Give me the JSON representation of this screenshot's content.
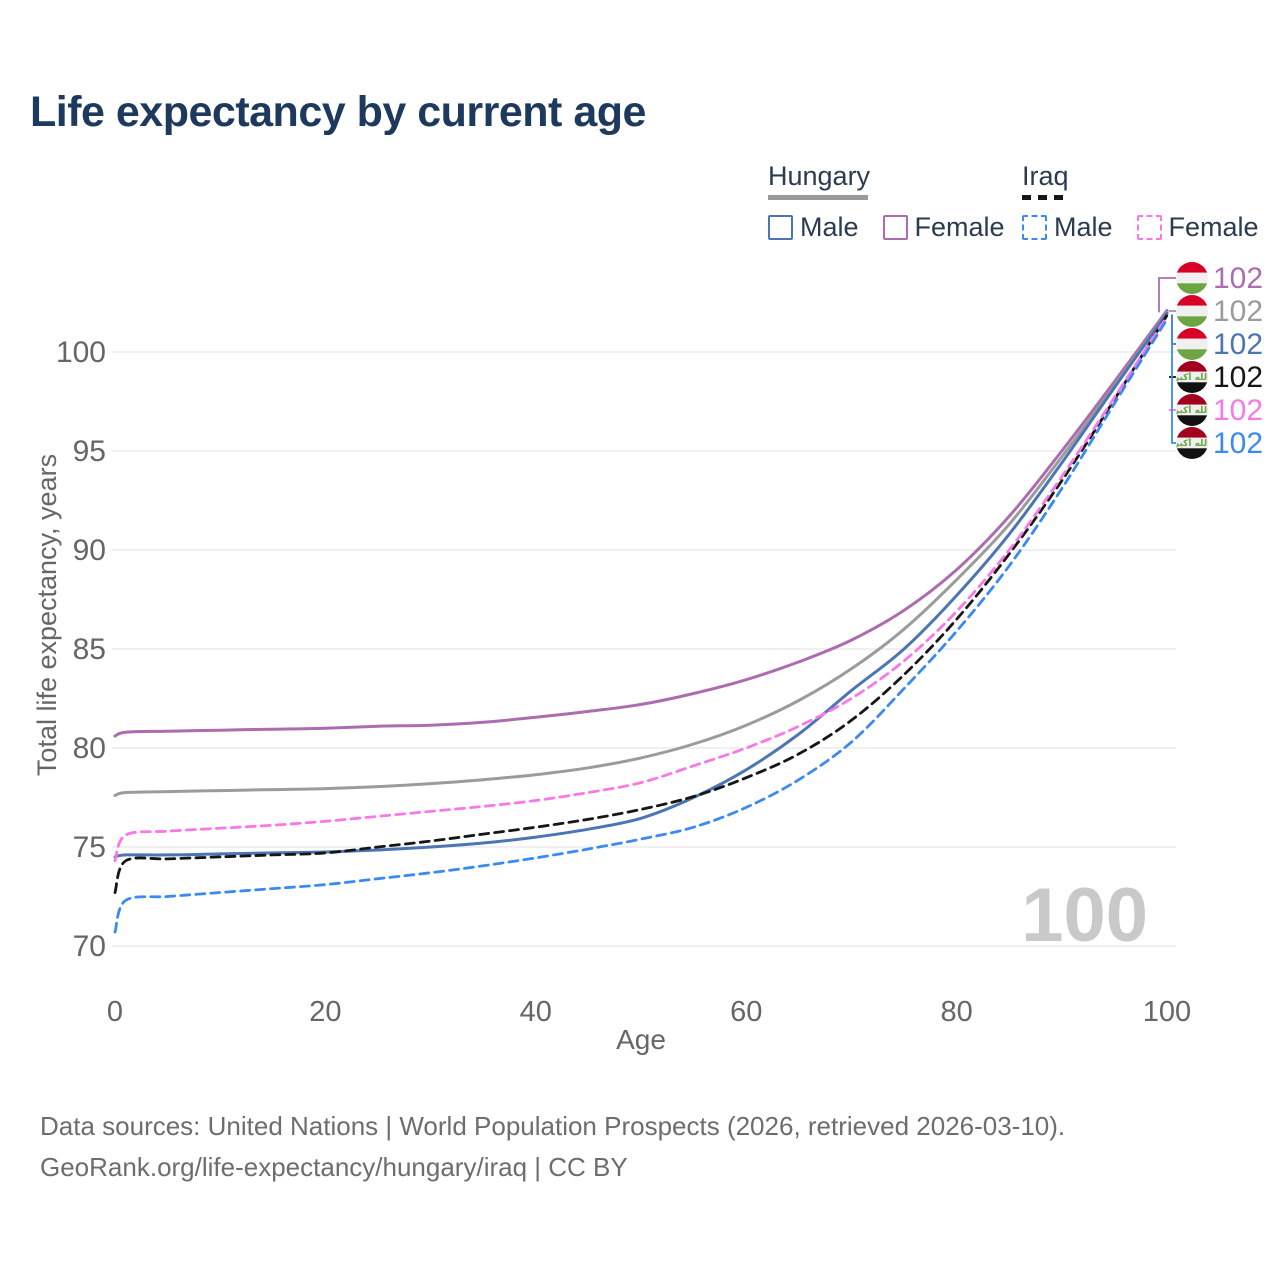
{
  "title": "Life expectancy by current age",
  "watermark": "100",
  "colors": {
    "title": "#1d3a5e",
    "axis_text": "#666666",
    "grid": "#e8e8e8",
    "watermark": "#c9c9c9",
    "footer_text": "#6d6d6d"
  },
  "legend": {
    "groups": [
      {
        "label": "Hungary",
        "underline_color": "#9a9a9a",
        "underline_dashed": false,
        "underline_width": 100,
        "items": [
          {
            "label": "Male",
            "color": "#4b76b3",
            "dashed": false
          },
          {
            "label": "Female",
            "color": "#ab6dad",
            "dashed": false
          }
        ]
      },
      {
        "label": "Iraq",
        "underline_color": "#161616",
        "underline_dashed": true,
        "underline_width": 46,
        "items": [
          {
            "label": "Male",
            "color": "#3b8af2",
            "dashed": true
          },
          {
            "label": "Female",
            "color": "#f878e6",
            "dashed": true
          }
        ]
      }
    ]
  },
  "chart_data": {
    "type": "line",
    "title": "Life expectancy by current age",
    "xlabel": "Age",
    "ylabel": "Total life expectancy, years",
    "x_ticks": [
      0,
      20,
      40,
      60,
      80,
      100
    ],
    "y_ticks": [
      70,
      75,
      80,
      85,
      90,
      95,
      100
    ],
    "xlim": [
      0,
      100
    ],
    "ylim": [
      70,
      103
    ],
    "grid": "horizontal-only",
    "legend_position": "top-right",
    "x": [
      0,
      1,
      5,
      10,
      15,
      20,
      25,
      30,
      35,
      40,
      45,
      50,
      55,
      60,
      65,
      70,
      75,
      80,
      85,
      90,
      95,
      100
    ],
    "series": [
      {
        "name": "Hungary Female",
        "country": "Hungary",
        "sex": "Female",
        "color": "#ab6dad",
        "dashed": false,
        "flag": "hungary-flag-icon",
        "end_label": "102",
        "values": [
          80.6,
          80.8,
          80.85,
          80.9,
          80.95,
          81.0,
          81.1,
          81.15,
          81.3,
          81.55,
          81.85,
          82.2,
          82.75,
          83.45,
          84.35,
          85.45,
          86.95,
          89.0,
          91.7,
          95.0,
          98.5,
          102.1
        ]
      },
      {
        "name": "Hungary Both sexes",
        "country": "Hungary",
        "sex": "Both",
        "color": "#9b9b9b",
        "dashed": false,
        "flag": "hungary-flag-icon",
        "end_label": "102",
        "values": [
          77.6,
          77.75,
          77.8,
          77.85,
          77.9,
          77.95,
          78.05,
          78.2,
          78.4,
          78.65,
          79.0,
          79.5,
          80.2,
          81.15,
          82.4,
          84.0,
          86.0,
          88.5,
          91.3,
          94.7,
          98.3,
          102.0
        ]
      },
      {
        "name": "Hungary Male",
        "country": "Hungary",
        "sex": "Male",
        "color": "#4b76b3",
        "dashed": false,
        "flag": "hungary-flag-icon",
        "end_label": "102",
        "values": [
          74.5,
          74.6,
          74.6,
          74.65,
          74.7,
          74.75,
          74.85,
          75.0,
          75.2,
          75.5,
          75.9,
          76.45,
          77.5,
          78.9,
          80.7,
          82.9,
          85.0,
          87.7,
          90.8,
          94.4,
          98.2,
          101.95
        ]
      },
      {
        "name": "Iraq Both sexes",
        "country": "Iraq",
        "sex": "Both",
        "color": "#161616",
        "dashed": true,
        "flag": "iraq-flag-icon",
        "end_label": "102",
        "values": [
          72.7,
          74.3,
          74.4,
          74.5,
          74.6,
          74.7,
          75.0,
          75.3,
          75.65,
          76.0,
          76.4,
          76.9,
          77.55,
          78.5,
          79.7,
          81.4,
          83.7,
          86.5,
          89.8,
          93.5,
          97.6,
          101.85
        ]
      },
      {
        "name": "Iraq Female",
        "country": "Iraq",
        "sex": "Female",
        "color": "#f878e6",
        "dashed": true,
        "flag": "iraq-flag-icon",
        "end_label": "102",
        "values": [
          74.3,
          75.6,
          75.8,
          75.95,
          76.1,
          76.3,
          76.55,
          76.8,
          77.05,
          77.35,
          77.75,
          78.25,
          79.1,
          80.0,
          81.1,
          82.5,
          84.4,
          86.9,
          90.0,
          93.7,
          97.7,
          101.8
        ]
      },
      {
        "name": "Iraq Male",
        "country": "Iraq",
        "sex": "Male",
        "color": "#3b8af2",
        "dashed": true,
        "flag": "iraq-flag-icon",
        "end_label": "102",
        "values": [
          70.7,
          72.3,
          72.5,
          72.7,
          72.9,
          73.1,
          73.4,
          73.7,
          74.05,
          74.45,
          74.9,
          75.4,
          76.0,
          77.0,
          78.4,
          80.3,
          83.0,
          85.9,
          89.2,
          93.1,
          97.4,
          101.65
        ]
      }
    ]
  },
  "footer": {
    "line1": "Data sources: United Nations | World Population Prospects (2026, retrieved 2026-03-10).",
    "line2": "GeoRank.org/life-expectancy/hungary/iraq | CC BY"
  }
}
